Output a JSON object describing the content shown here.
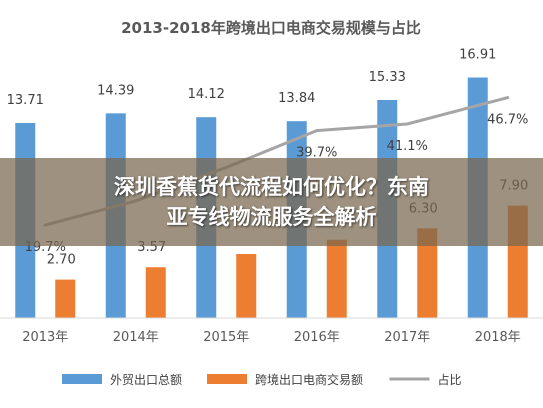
{
  "chart_data": {
    "type": "bar",
    "title": "2013-2018年跨境出口电商交易规模与占比",
    "categories": [
      "2013年",
      "2014年",
      "2015年",
      "2016年",
      "2017年",
      "2018年"
    ],
    "series": [
      {
        "name": "外贸出口总额",
        "kind": "bar",
        "color": "#5b9bd5",
        "values": [
          13.71,
          14.39,
          14.12,
          13.84,
          15.33,
          16.91
        ],
        "labels": [
          "13.71",
          "14.39",
          "14.12",
          "13.84",
          "15.33",
          "16.91"
        ]
      },
      {
        "name": "跨境出口电商交易额",
        "kind": "bar",
        "color": "#ed7d31",
        "values": [
          2.7,
          3.57,
          4.5,
          5.5,
          6.3,
          7.9
        ],
        "labels": [
          "2.70",
          "3.57",
          "",
          "",
          "6.30",
          "7.90"
        ]
      },
      {
        "name": "占比",
        "kind": "line",
        "color": "#a5a5a5",
        "values": [
          19.7,
          24.8,
          31.9,
          39.7,
          41.1,
          46.7
        ],
        "labels": [
          "19.7%",
          "",
          "",
          "39.7%",
          "41.1%",
          "46.7%"
        ]
      }
    ],
    "ylim": [
      0,
      18
    ],
    "y2lim": [
      0,
      50
    ],
    "grid": false,
    "legend": "bottom"
  },
  "overlay": {
    "line1": "深圳香蕉货代流程如何优化？东南",
    "line2": "亚专线物流服务全解析"
  }
}
